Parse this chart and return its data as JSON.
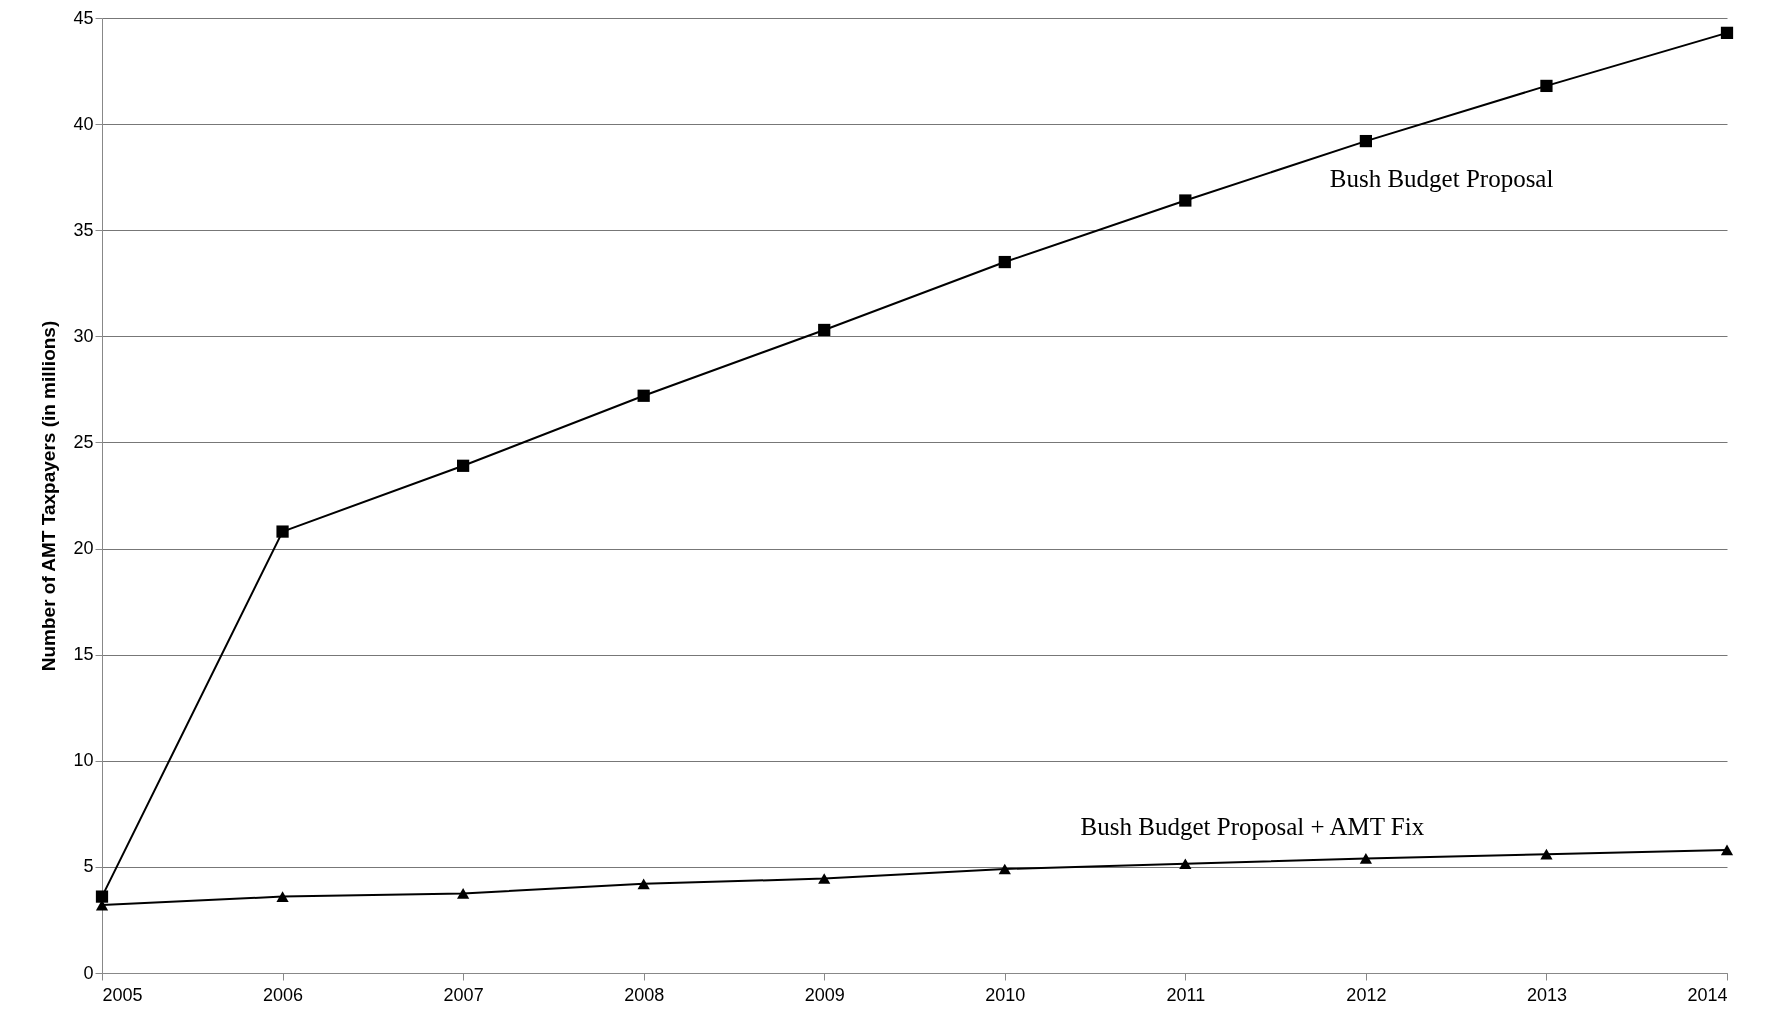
{
  "chart_data": {
    "type": "line",
    "ylabel": "Number of AMT Taxpayers (in millions)",
    "x": [
      2005,
      2006,
      2007,
      2008,
      2009,
      2010,
      2011,
      2012,
      2013,
      2014
    ],
    "xlim": [
      2005,
      2014
    ],
    "xticks": [
      2005,
      2006,
      2007,
      2008,
      2009,
      2010,
      2011,
      2012,
      2013,
      2014
    ],
    "ylim": [
      0,
      45
    ],
    "yticks": [
      0,
      5,
      10,
      15,
      20,
      25,
      30,
      35,
      40,
      45
    ],
    "grid": "y",
    "series": [
      {
        "name": "Bush Budget Proposal",
        "color": "#000000",
        "marker": "square",
        "values": [
          3.6,
          20.8,
          23.9,
          27.2,
          30.3,
          33.5,
          36.4,
          39.2,
          41.8,
          44.3
        ]
      },
      {
        "name": "Bush Budget Proposal + AMT Fix",
        "color": "#000000",
        "marker": "triangle",
        "values": [
          3.2,
          3.6,
          3.75,
          4.2,
          4.45,
          4.9,
          5.15,
          5.4,
          5.6,
          5.8
        ]
      }
    ]
  }
}
